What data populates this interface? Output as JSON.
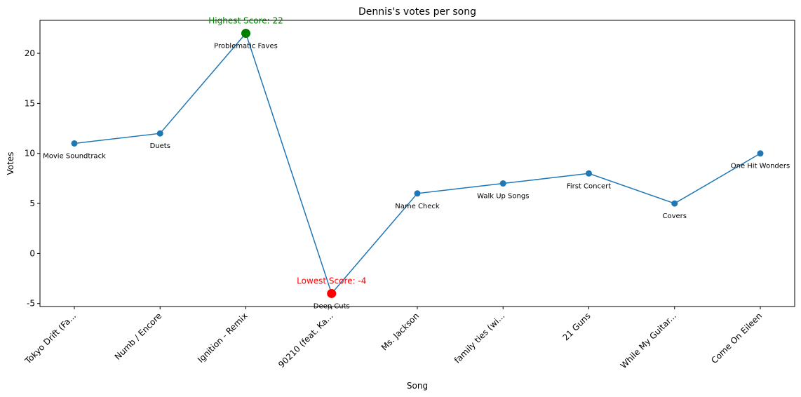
{
  "chart_data": {
    "type": "line",
    "title": "Dennis's votes per song",
    "xlabel": "Song",
    "ylabel": "Votes",
    "ylim": [
      -5.3,
      23.3
    ],
    "yticks": [
      -5,
      0,
      5,
      10,
      15,
      20
    ],
    "grid": false,
    "x": [
      "Tokyo Drift (Fa...",
      "Numb / Encore",
      "Ignition - Remix",
      "90210 (feat. Ka...",
      "Ms. Jackson",
      "family ties (wi...",
      "21 Guns",
      "While My Guitar...",
      "Come On Eileen"
    ],
    "series": [
      {
        "values": [
          11,
          12,
          22,
          -4,
          6,
          7,
          8,
          5,
          10
        ],
        "color": "#1f77b4"
      }
    ],
    "point_labels": [
      "Movie Soundtrack",
      "Duets",
      "Problematic Faves",
      "Deep Cuts",
      "Name Check",
      "Walk Up Songs",
      "First Concert",
      "Covers",
      "One Hit Wonders"
    ],
    "highlights": {
      "max": {
        "index": 2,
        "text": "Highest Score: 22",
        "color": "#008000"
      },
      "min": {
        "index": 3,
        "text": "Lowest Score: -4",
        "color": "#ff0000"
      }
    }
  }
}
